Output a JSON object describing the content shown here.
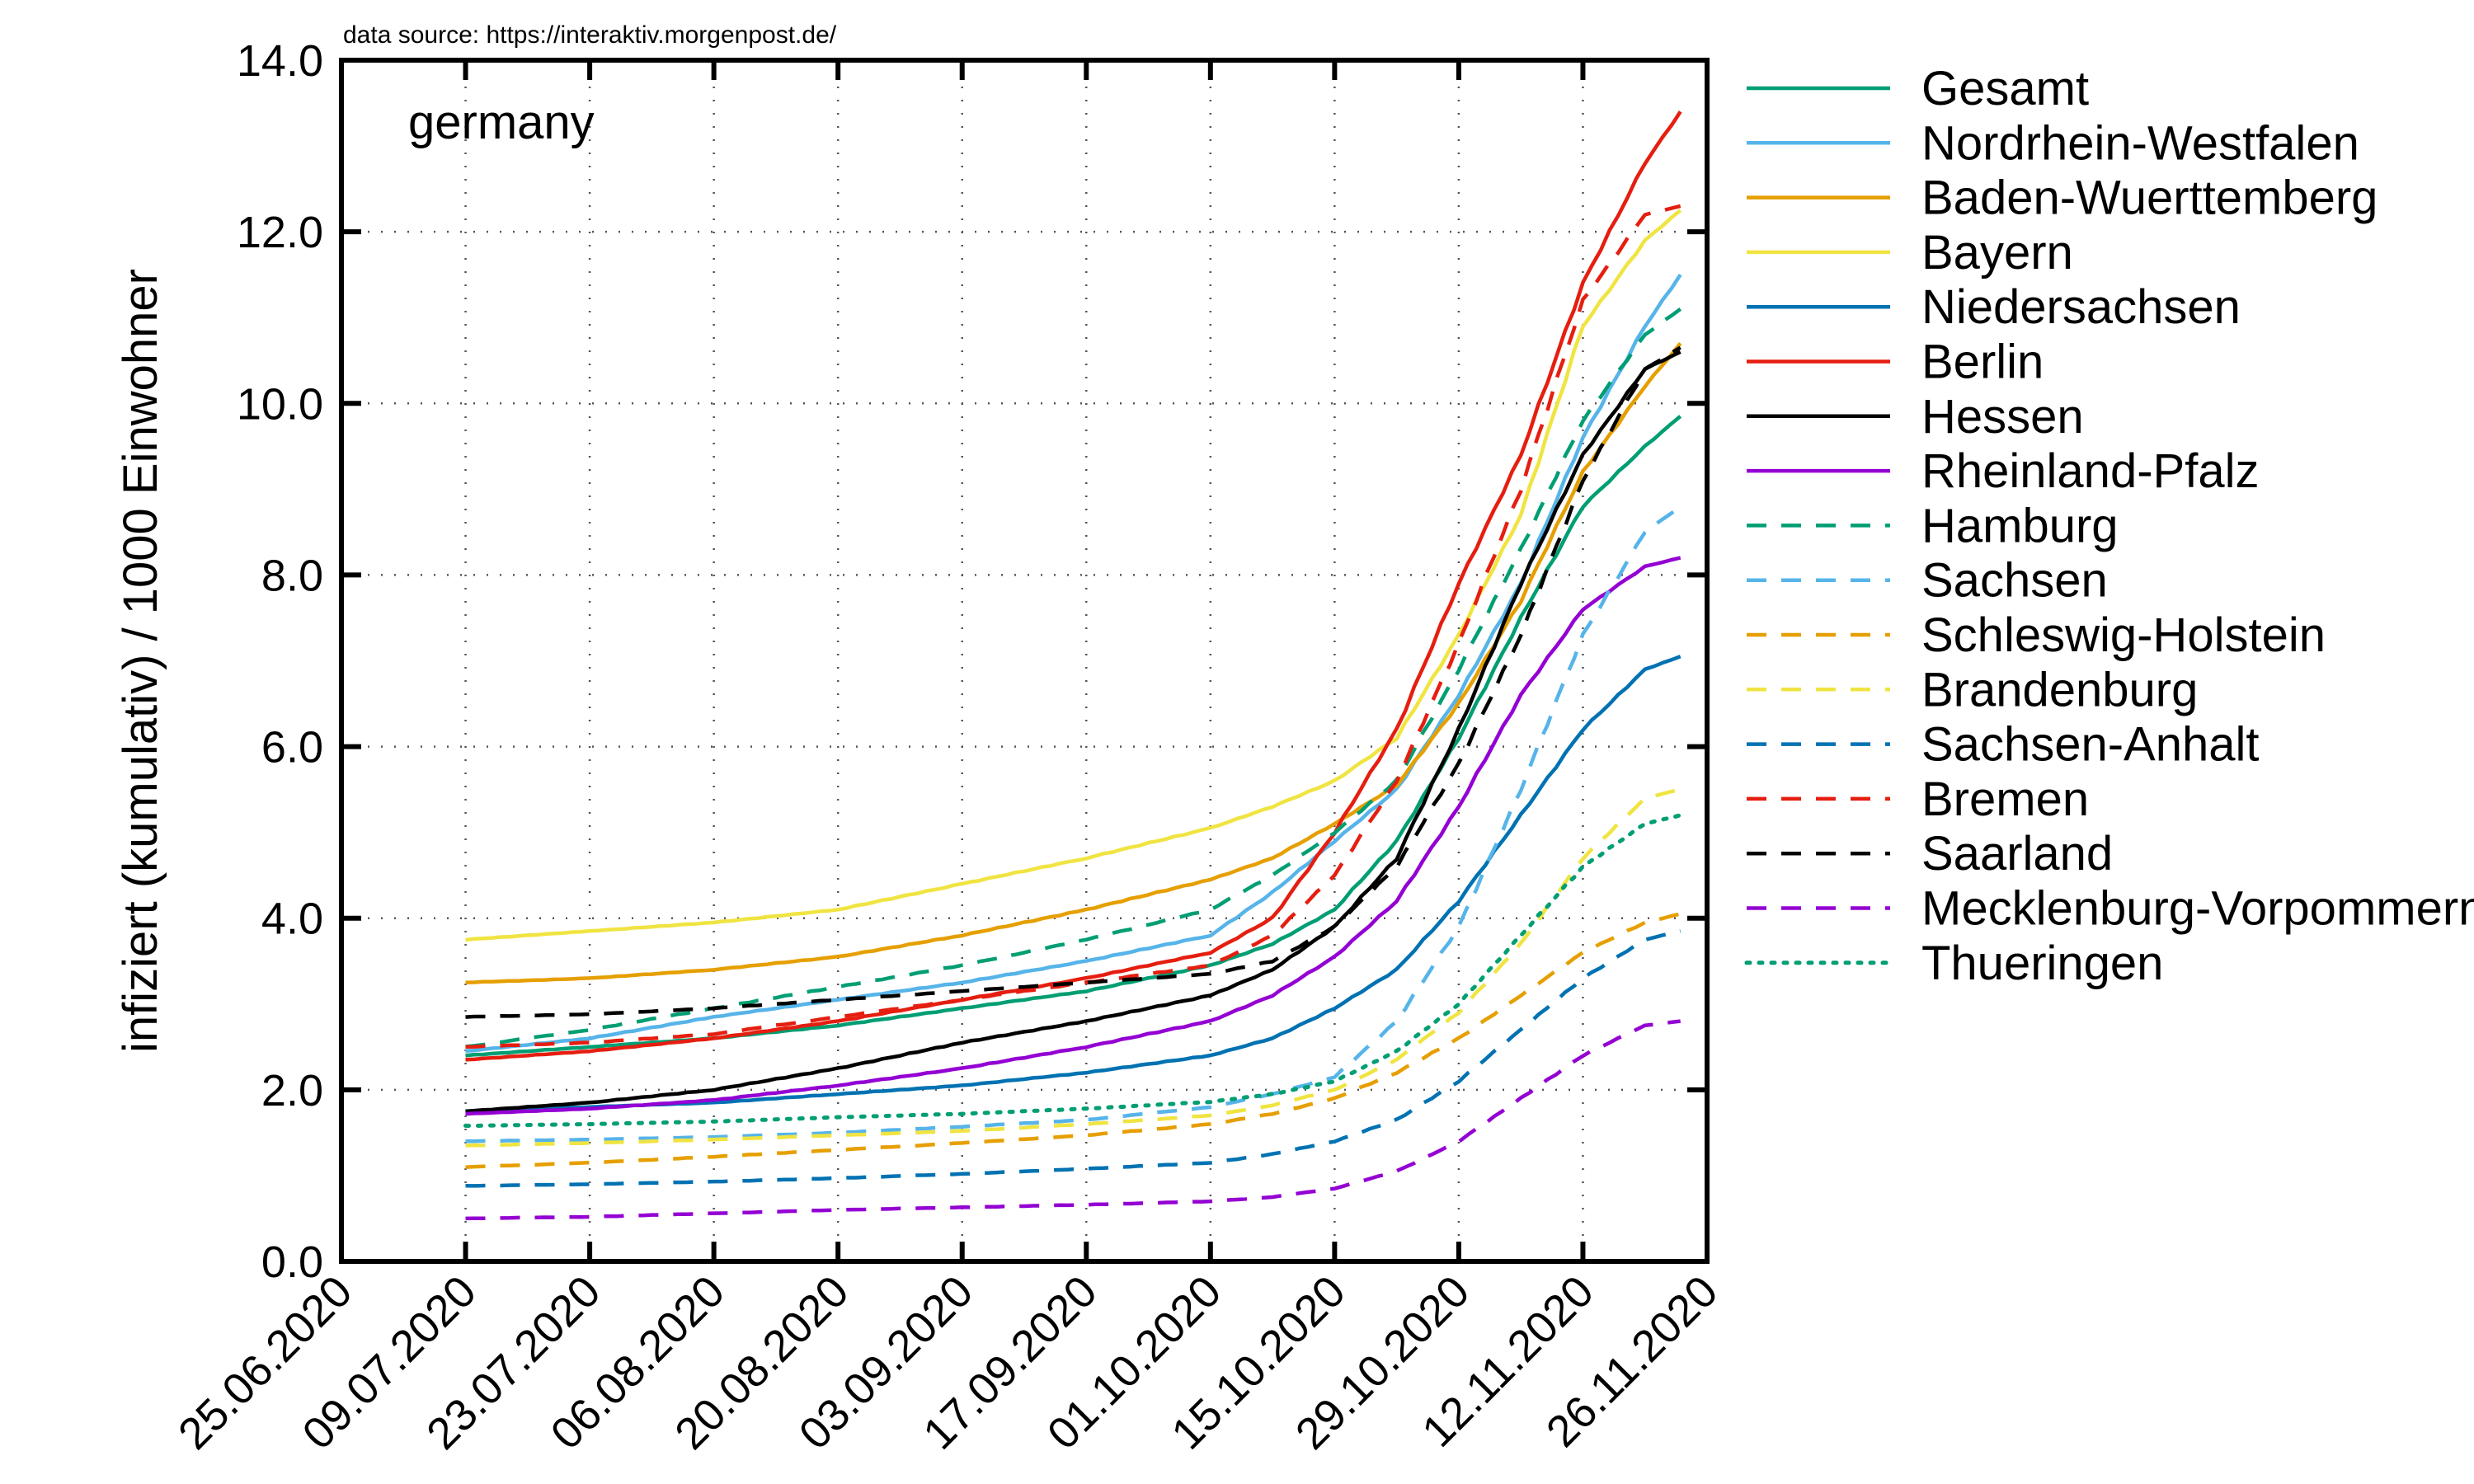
{
  "chart_data": {
    "type": "line",
    "source_note": "data source: https://interaktiv.morgenpost.de/",
    "region_label": "germany",
    "ylabel": "infiziert (kumulativ) / 1000 Einwohner",
    "xlabel": "",
    "ylim": [
      0,
      14
    ],
    "yticks": [
      "0.0",
      "2.0",
      "4.0",
      "6.0",
      "8.0",
      "10.0",
      "12.0",
      "14.0"
    ],
    "xlim": [
      "2020-06-25",
      "2020-11-26"
    ],
    "xticks": [
      "25.06.2020",
      "09.07.2020",
      "23.07.2020",
      "06.08.2020",
      "20.08.2020",
      "03.09.2020",
      "17.09.2020",
      "01.10.2020",
      "15.10.2020",
      "29.10.2020",
      "12.11.2020",
      "26.11.2020"
    ],
    "grid": true,
    "legend_position": "outside-right",
    "x": [
      "2020-07-09",
      "2020-07-23",
      "2020-08-06",
      "2020-08-20",
      "2020-09-03",
      "2020-09-17",
      "2020-10-01",
      "2020-10-08",
      "2020-10-15",
      "2020-10-22",
      "2020-10-29",
      "2020-11-05",
      "2020-11-12",
      "2020-11-19",
      "2020-11-23"
    ],
    "series": [
      {
        "name": "Gesamt",
        "color": "#009e73",
        "dash": "solid",
        "values": [
          2.4,
          2.5,
          2.6,
          2.75,
          2.95,
          3.15,
          3.45,
          3.7,
          4.1,
          4.9,
          6.1,
          7.5,
          8.8,
          9.5,
          9.85
        ]
      },
      {
        "name": "Nordrhein-Westfalen",
        "color": "#56b4e9",
        "dash": "solid",
        "values": [
          2.45,
          2.6,
          2.85,
          3.05,
          3.25,
          3.5,
          3.8,
          4.3,
          4.9,
          5.5,
          6.6,
          7.9,
          9.6,
          10.9,
          11.5
        ]
      },
      {
        "name": "Baden-Wuerttemberg",
        "color": "#e69f00",
        "dash": "solid",
        "values": [
          3.25,
          3.3,
          3.4,
          3.55,
          3.8,
          4.1,
          4.45,
          4.7,
          5.1,
          5.55,
          6.5,
          7.7,
          9.2,
          10.2,
          10.7
        ]
      },
      {
        "name": "Bayern",
        "color": "#f0e442",
        "dash": "solid",
        "values": [
          3.75,
          3.85,
          3.95,
          4.1,
          4.4,
          4.7,
          5.05,
          5.3,
          5.6,
          6.1,
          7.3,
          8.7,
          10.9,
          11.9,
          12.25
        ]
      },
      {
        "name": "Niedersachsen",
        "color": "#0072b2",
        "dash": "solid",
        "values": [
          1.75,
          1.8,
          1.85,
          1.95,
          2.05,
          2.2,
          2.4,
          2.6,
          2.95,
          3.4,
          4.2,
          5.2,
          6.2,
          6.9,
          7.05
        ]
      },
      {
        "name": "Berlin",
        "color": "#e51e10",
        "dash": "solid",
        "values": [
          2.35,
          2.45,
          2.6,
          2.8,
          3.05,
          3.3,
          3.6,
          4.0,
          5.0,
          6.2,
          7.9,
          9.4,
          11.4,
          12.8,
          13.4
        ]
      },
      {
        "name": "Hessen",
        "color": "#000000",
        "dash": "solid",
        "values": [
          1.75,
          1.85,
          2.0,
          2.25,
          2.55,
          2.8,
          3.1,
          3.4,
          3.9,
          4.7,
          6.2,
          7.9,
          9.4,
          10.4,
          10.6
        ]
      },
      {
        "name": "Rheinland-Pfalz",
        "color": "#9400d3",
        "dash": "solid",
        "values": [
          1.72,
          1.78,
          1.88,
          2.05,
          2.25,
          2.5,
          2.8,
          3.1,
          3.55,
          4.2,
          5.3,
          6.6,
          7.6,
          8.1,
          8.2
        ]
      },
      {
        "name": "Hamburg",
        "color": "#009e73",
        "dash": "dashed",
        "values": [
          2.5,
          2.7,
          2.95,
          3.2,
          3.45,
          3.75,
          4.1,
          4.5,
          5.0,
          5.6,
          6.9,
          8.3,
          9.8,
          10.8,
          11.1
        ]
      },
      {
        "name": "Sachsen",
        "color": "#56b4e9",
        "dash": "dashed",
        "values": [
          1.4,
          1.42,
          1.45,
          1.5,
          1.57,
          1.65,
          1.8,
          1.95,
          2.15,
          2.8,
          3.9,
          5.5,
          7.3,
          8.5,
          8.8
        ]
      },
      {
        "name": "Schleswig-Holstein",
        "color": "#e69f00",
        "dash": "dashed",
        "values": [
          1.1,
          1.15,
          1.22,
          1.3,
          1.38,
          1.47,
          1.6,
          1.72,
          1.9,
          2.2,
          2.6,
          3.1,
          3.6,
          3.95,
          4.05
        ]
      },
      {
        "name": "Brandenburg",
        "color": "#f0e442",
        "dash": "dashed",
        "values": [
          1.35,
          1.38,
          1.42,
          1.47,
          1.52,
          1.6,
          1.7,
          1.82,
          2.0,
          2.35,
          2.9,
          3.7,
          4.7,
          5.4,
          5.5
        ]
      },
      {
        "name": "Sachsen-Anhalt",
        "color": "#0072b2",
        "dash": "dashed",
        "values": [
          0.88,
          0.9,
          0.93,
          0.97,
          1.02,
          1.08,
          1.15,
          1.25,
          1.4,
          1.65,
          2.1,
          2.7,
          3.3,
          3.75,
          3.85
        ]
      },
      {
        "name": "Bremen",
        "color": "#e51e10",
        "dash": "dashed",
        "values": [
          2.5,
          2.55,
          2.65,
          2.85,
          3.05,
          3.25,
          3.45,
          3.8,
          4.5,
          5.6,
          7.2,
          9.0,
          11.2,
          12.2,
          12.3
        ]
      },
      {
        "name": "Saarland",
        "color": "#000000",
        "dash": "dashed",
        "values": [
          2.85,
          2.88,
          2.95,
          3.05,
          3.15,
          3.25,
          3.35,
          3.5,
          3.9,
          4.6,
          5.8,
          7.3,
          9.1,
          10.4,
          10.65
        ]
      },
      {
        "name": "Mecklenburg-Vorpommern",
        "color": "#9400d3",
        "dash": "dashed",
        "values": [
          0.5,
          0.52,
          0.56,
          0.6,
          0.63,
          0.66,
          0.7,
          0.75,
          0.85,
          1.05,
          1.4,
          1.9,
          2.4,
          2.75,
          2.8
        ]
      },
      {
        "name": "Thueringen",
        "color": "#009e73",
        "dash": "dotted",
        "values": [
          1.58,
          1.6,
          1.63,
          1.68,
          1.72,
          1.78,
          1.86,
          1.95,
          2.1,
          2.45,
          3.0,
          3.8,
          4.6,
          5.1,
          5.2
        ]
      }
    ]
  }
}
